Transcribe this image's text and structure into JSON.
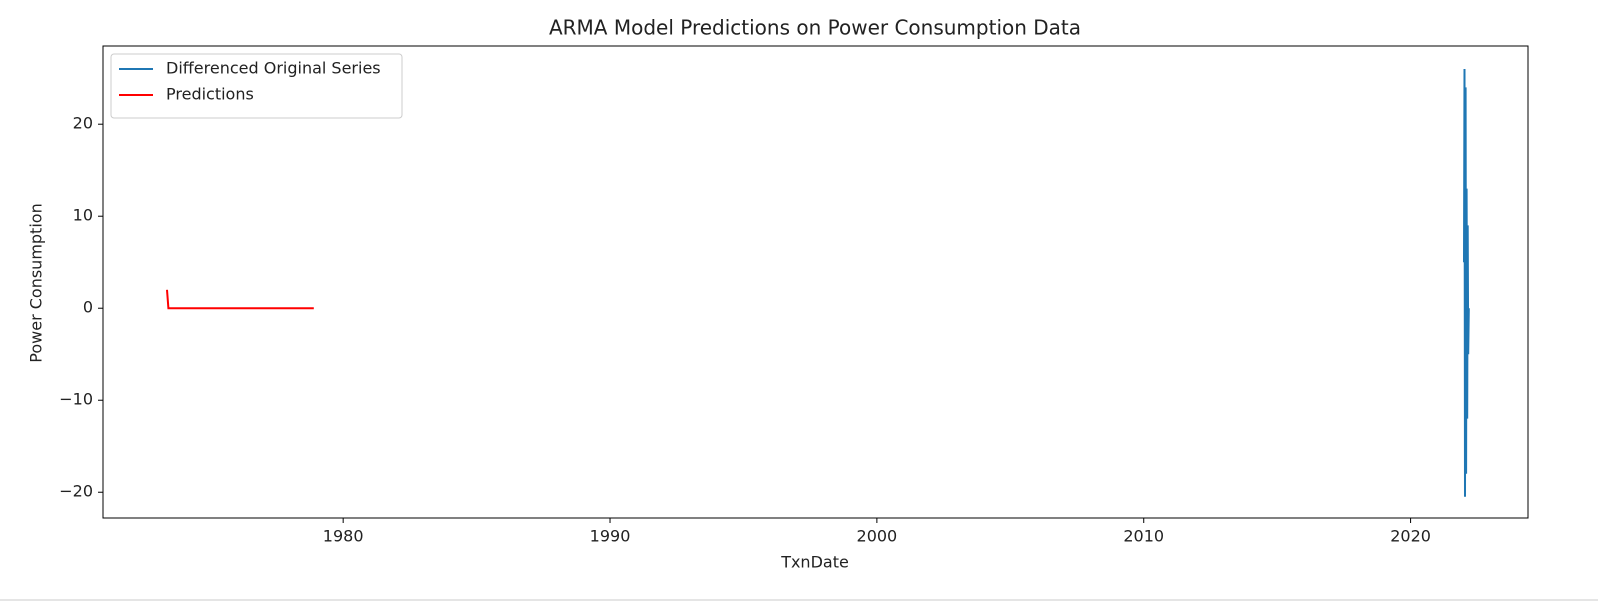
{
  "chart_data": {
    "type": "line",
    "title": "ARMA Model Predictions on Power Consumption Data",
    "xlabel": "TxnDate",
    "ylabel": "Power Consumption",
    "xlim": [
      1971.0,
      2024.4
    ],
    "ylim": [
      -22.8,
      28.5
    ],
    "xticks": [
      1980,
      1990,
      2000,
      2010,
      2020
    ],
    "yticks": [
      {
        "value": -20,
        "label": "−20"
      },
      {
        "value": -10,
        "label": "−10"
      },
      0,
      10,
      20
    ],
    "legend": "upper left",
    "grid": false,
    "series": [
      {
        "name": "Differenced Original Series",
        "color": "#1f77b4",
        "x": [
          2022.0,
          2022.02,
          2022.04,
          2022.06,
          2022.08,
          2022.1,
          2022.12,
          2022.14,
          2022.16,
          2022.18
        ],
        "values": [
          5,
          26,
          -20.5,
          24,
          -18,
          13,
          -12,
          9,
          -5,
          0
        ]
      },
      {
        "name": "Predictions",
        "color": "#ff0000",
        "x": [
          1973.4,
          1973.45,
          1978.9
        ],
        "values": [
          2,
          0,
          0
        ]
      }
    ]
  }
}
